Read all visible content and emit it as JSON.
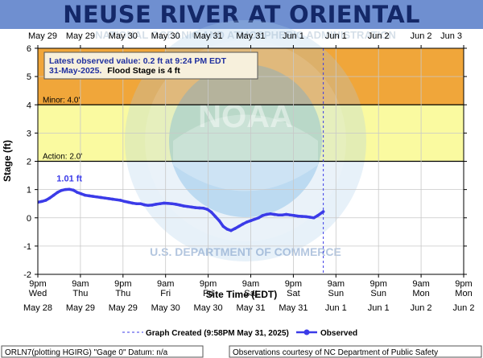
{
  "title": "NEUSE RIVER AT ORIENTAL",
  "chart_data": {
    "type": "line",
    "title": "NEUSE RIVER AT ORIENTAL",
    "xlabel": "Site Time (EDT)",
    "ylabel": "Stage (ft)",
    "ylim": [
      -2,
      6
    ],
    "xlim": [
      0,
      108
    ],
    "yticks": [
      -2,
      -1,
      0,
      1,
      2,
      3,
      4,
      5,
      6
    ],
    "x_top_labels": [
      "May 29",
      "May 29",
      "May 30",
      "May 30",
      "May 31",
      "May 31",
      "Jun 1",
      "Jun 1",
      "Jun 2",
      "Jun 2",
      "Jun 3"
    ],
    "x_bottom_labels": [
      [
        "9pm",
        "Wed",
        "May 28"
      ],
      [
        "9am",
        "Thu",
        "May 29"
      ],
      [
        "9pm",
        "Thu",
        "May 29"
      ],
      [
        "9am",
        "Fri",
        "May 30"
      ],
      [
        "9pm",
        "Fri",
        "May 30"
      ],
      [
        "9am",
        "Sat",
        "May 31"
      ],
      [
        "9pm",
        "Sat",
        "May 31"
      ],
      [
        "9am",
        "Sun",
        "Jun 1"
      ],
      [
        "9pm",
        "Sun",
        "Jun 1"
      ],
      [
        "9am",
        "Mon",
        "Jun 2"
      ],
      [
        "9pm",
        "Mon",
        "Jun 2"
      ]
    ],
    "grid": true,
    "bands": [
      {
        "name": "flood",
        "from": 4,
        "to": 6,
        "color": "#f0a63a"
      },
      {
        "name": "minor",
        "from": 2,
        "to": 4,
        "color": "#fafaa0"
      }
    ],
    "thresholds": [
      {
        "label": "Minor: 4.0'",
        "value": 4
      },
      {
        "label": "Action: 2.0'",
        "value": 2
      }
    ],
    "peak_label": "1.01 ft",
    "graph_created_x": 72.4,
    "series": [
      {
        "name": "Observed",
        "color": "#3b3be8",
        "x": [
          0,
          1,
          2,
          3,
          4,
          5,
          6,
          7,
          8,
          9,
          10,
          11,
          12,
          13,
          14,
          15,
          16,
          17,
          18,
          19,
          20,
          21,
          22,
          23,
          24,
          25,
          26,
          27,
          28,
          29,
          30,
          31,
          32,
          33,
          34,
          35,
          36,
          37,
          38,
          39,
          40,
          41,
          42,
          43,
          44,
          45,
          46,
          47,
          48,
          49,
          50,
          51,
          52,
          53,
          54,
          55,
          56,
          57,
          58,
          59,
          60,
          61,
          62,
          63,
          64,
          65,
          66,
          67,
          68,
          69,
          70,
          71,
          72.4
        ],
        "y": [
          0.55,
          0.58,
          0.62,
          0.7,
          0.8,
          0.9,
          0.97,
          1.0,
          1.01,
          0.98,
          0.9,
          0.85,
          0.8,
          0.78,
          0.76,
          0.74,
          0.72,
          0.7,
          0.68,
          0.66,
          0.64,
          0.62,
          0.58,
          0.55,
          0.52,
          0.5,
          0.5,
          0.46,
          0.44,
          0.45,
          0.48,
          0.5,
          0.52,
          0.51,
          0.5,
          0.48,
          0.45,
          0.42,
          0.4,
          0.38,
          0.36,
          0.35,
          0.34,
          0.3,
          0.2,
          0.05,
          -0.1,
          -0.3,
          -0.4,
          -0.45,
          -0.38,
          -0.3,
          -0.22,
          -0.15,
          -0.1,
          -0.05,
          0.0,
          0.08,
          0.12,
          0.14,
          0.12,
          0.1,
          0.1,
          0.12,
          0.1,
          0.08,
          0.06,
          0.05,
          0.04,
          0.02,
          0.0,
          0.08,
          0.22
        ]
      }
    ]
  },
  "info_box": {
    "line1": "Latest observed value: 0.2 ft at 9:24 PM EDT",
    "line2_date": "31-May-2025.",
    "line2_flood": "Flood Stage is 4 ft"
  },
  "legend": {
    "graph_created": "Graph Created (9:58PM May 31, 2025)",
    "observed": "Observed"
  },
  "footer": {
    "left": "ORLN7(plotting HGIRG) \"Gage 0\" Datum: n/a",
    "right": "Observations courtesy of NC Department of Public Safety"
  },
  "colors": {
    "title_bar": "#6f8fd0",
    "title_text": "#142868",
    "series": "#3b3be8",
    "info_text": "#2030a0"
  },
  "watermark": {
    "outer_text": "NATIONAL OCEANIC AND ATMOSPHERIC ADMINISTRATION",
    "inner_text": "NOAA",
    "bottom_text": "U.S. DEPARTMENT OF COMMERCE"
  }
}
